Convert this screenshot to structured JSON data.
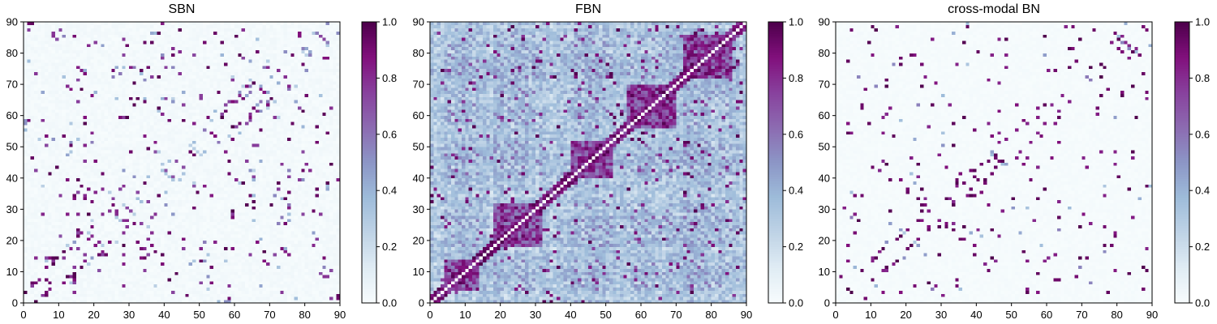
{
  "figure": {
    "panels": [
      {
        "title": "SBN"
      },
      {
        "title": "FBN"
      },
      {
        "title": "cross-modal BN"
      }
    ]
  },
  "colormap": {
    "name": "BuPu",
    "stops": [
      "#f7fcfd",
      "#e0ecf4",
      "#bfd3e6",
      "#9ebcda",
      "#8c96c6",
      "#8c6bb1",
      "#88419d",
      "#810f7c",
      "#4d004b"
    ]
  },
  "chart_data": [
    {
      "type": "heatmap",
      "title": "SBN",
      "xlim": [
        0,
        90
      ],
      "ylim": [
        0,
        90
      ],
      "xticks": [
        "0",
        "10",
        "20",
        "30",
        "40",
        "50",
        "60",
        "70",
        "80",
        "90"
      ],
      "yticks": [
        "0",
        "10",
        "20",
        "30",
        "40",
        "50",
        "60",
        "70",
        "80",
        "90"
      ],
      "colorbar": {
        "range": [
          0,
          1
        ],
        "ticks": [
          "0.0",
          "0.2",
          "0.4",
          "0.6",
          "0.8",
          "1.0"
        ]
      },
      "matrix_size": 90,
      "description": "Sparse symmetric 90x90 structural connectivity; mostly near 0 with scattered strong (~0.8-1.0) entries"
    },
    {
      "type": "heatmap",
      "title": "FBN",
      "xlim": [
        0,
        90
      ],
      "ylim": [
        0,
        90
      ],
      "xticks": [
        "0",
        "10",
        "20",
        "30",
        "40",
        "50",
        "60",
        "70",
        "80",
        "90"
      ],
      "yticks": [
        "0",
        "10",
        "20",
        "30",
        "40",
        "50",
        "60",
        "70",
        "80",
        "90"
      ],
      "colorbar": {
        "range": [
          0,
          1
        ],
        "ticks": [
          "0.0",
          "0.2",
          "0.4",
          "0.6",
          "0.8",
          "1.0"
        ]
      },
      "matrix_size": 90,
      "description": "Dense symmetric 90x90 functional connectivity with block structure; values mostly 0.1-0.5, strong blocks near the diagonal"
    },
    {
      "type": "heatmap",
      "title": "cross-modal BN",
      "xlim": [
        0,
        90
      ],
      "ylim": [
        0,
        90
      ],
      "xticks": [
        "0",
        "10",
        "20",
        "30",
        "40",
        "50",
        "60",
        "70",
        "80",
        "90"
      ],
      "yticks": [
        "0",
        "10",
        "20",
        "30",
        "40",
        "50",
        "60",
        "70",
        "80",
        "90"
      ],
      "colorbar": {
        "range": [
          0,
          1
        ],
        "ticks": [
          "0.0",
          "0.2",
          "0.4",
          "0.6",
          "0.8",
          "1.0"
        ]
      },
      "matrix_size": 90,
      "description": "Very sparse symmetric 90x90 matrix; background near 0 with isolated strong (~0.8-1.0) entries"
    }
  ]
}
